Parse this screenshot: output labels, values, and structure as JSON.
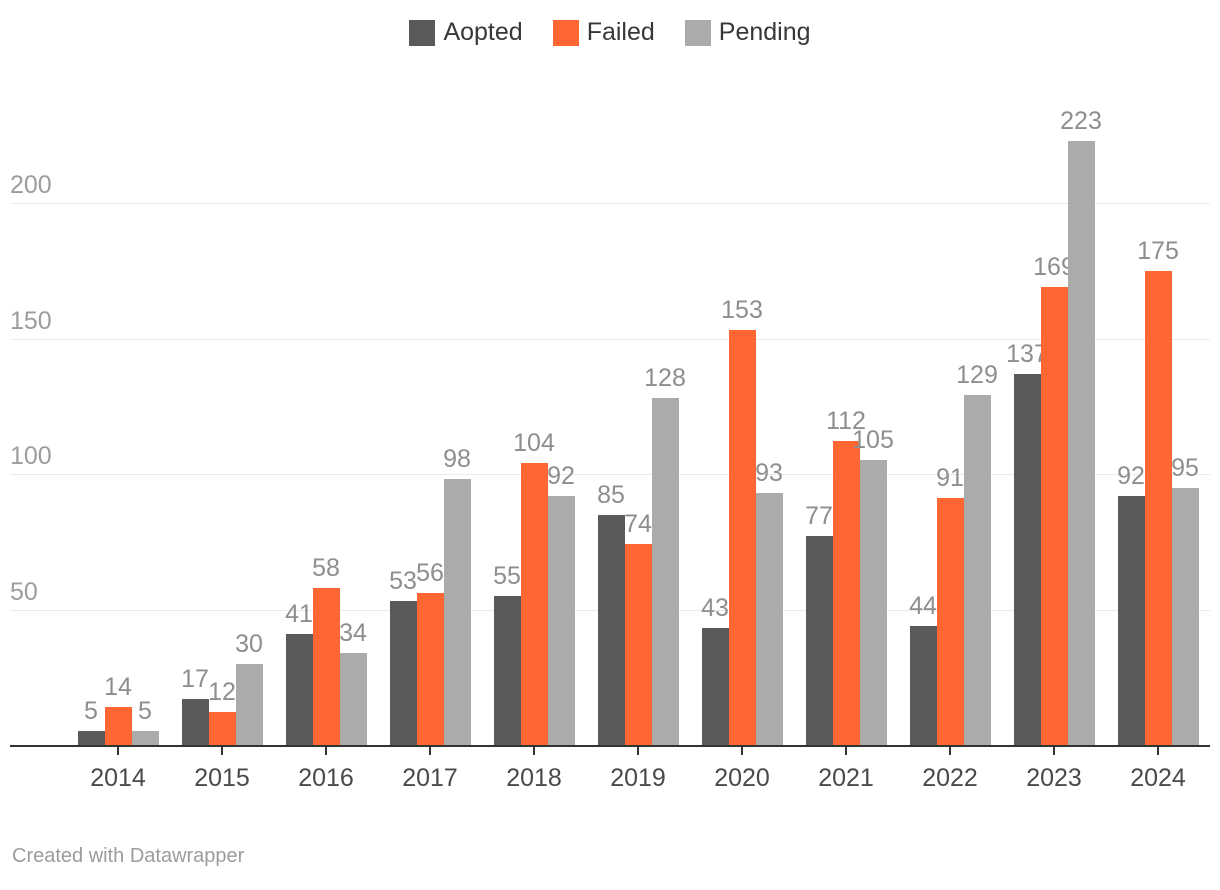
{
  "chart_data": {
    "type": "bar",
    "categories": [
      "2014",
      "2015",
      "2016",
      "2017",
      "2018",
      "2019",
      "2020",
      "2021",
      "2022",
      "2023",
      "2024"
    ],
    "series": [
      {
        "name": "Aopted",
        "color": "#5a5a5a",
        "values": [
          5,
          17,
          41,
          53,
          55,
          85,
          43,
          77,
          44,
          137,
          92
        ]
      },
      {
        "name": "Failed",
        "color": "#ff6632",
        "values": [
          14,
          12,
          58,
          56,
          104,
          74,
          153,
          112,
          91,
          169,
          175
        ]
      },
      {
        "name": "Pending",
        "color": "#ababab",
        "values": [
          5,
          30,
          34,
          98,
          92,
          128,
          93,
          105,
          129,
          223,
          95
        ]
      }
    ],
    "title": "",
    "xlabel": "",
    "ylabel": "",
    "ylim": [
      0,
      230
    ],
    "y_ticks": [
      50,
      100,
      150,
      200
    ],
    "grid": "horizontal",
    "legend_position": "top-center",
    "value_labels": true
  },
  "colors": {
    "background": "#ffffff",
    "axis": "#333333",
    "gridline": "#eaeaea",
    "ytick_label": "#9c9c9c",
    "value_label": "#8e8e8e",
    "xcat_label": "#4a4a4a",
    "legend_text": "#383838"
  },
  "footer": {
    "credit": "Created with Datawrapper"
  }
}
